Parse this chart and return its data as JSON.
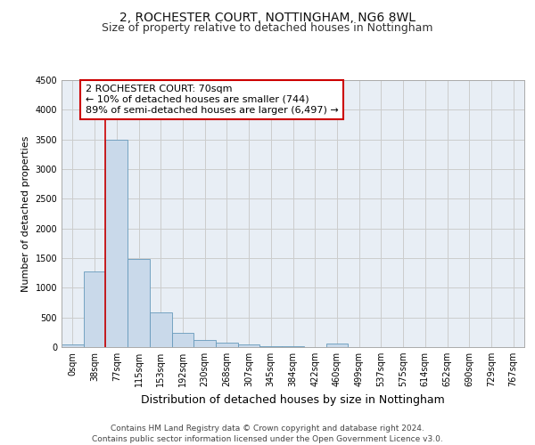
{
  "title1": "2, ROCHESTER COURT, NOTTINGHAM, NG6 8WL",
  "title2": "Size of property relative to detached houses in Nottingham",
  "xlabel": "Distribution of detached houses by size in Nottingham",
  "ylabel": "Number of detached properties",
  "bin_labels": [
    "0sqm",
    "38sqm",
    "77sqm",
    "115sqm",
    "153sqm",
    "192sqm",
    "230sqm",
    "268sqm",
    "307sqm",
    "345sqm",
    "384sqm",
    "422sqm",
    "460sqm",
    "499sqm",
    "537sqm",
    "575sqm",
    "614sqm",
    "652sqm",
    "690sqm",
    "729sqm",
    "767sqm"
  ],
  "bar_values": [
    40,
    1280,
    3500,
    1480,
    580,
    240,
    115,
    80,
    50,
    20,
    10,
    0,
    60,
    0,
    0,
    0,
    0,
    0,
    0,
    0,
    0
  ],
  "bar_color": "#c9d9ea",
  "bar_edge_color": "#6699bb",
  "annotation_text": "2 ROCHESTER COURT: 70sqm\n← 10% of detached houses are smaller (744)\n89% of semi-detached houses are larger (6,497) →",
  "annotation_box_facecolor": "#ffffff",
  "annotation_box_edgecolor": "#cc0000",
  "vline_color": "#cc0000",
  "footer_line1": "Contains HM Land Registry data © Crown copyright and database right 2024.",
  "footer_line2": "Contains public sector information licensed under the Open Government Licence v3.0.",
  "ylim": [
    0,
    4500
  ],
  "yticks": [
    0,
    500,
    1000,
    1500,
    2000,
    2500,
    3000,
    3500,
    4000,
    4500
  ],
  "grid_color": "#cccccc",
  "bg_color": "#e8eef5",
  "title1_fontsize": 10,
  "title2_fontsize": 9,
  "xlabel_fontsize": 9,
  "ylabel_fontsize": 8,
  "tick_fontsize": 7,
  "annotation_fontsize": 8,
  "footer_fontsize": 6.5
}
